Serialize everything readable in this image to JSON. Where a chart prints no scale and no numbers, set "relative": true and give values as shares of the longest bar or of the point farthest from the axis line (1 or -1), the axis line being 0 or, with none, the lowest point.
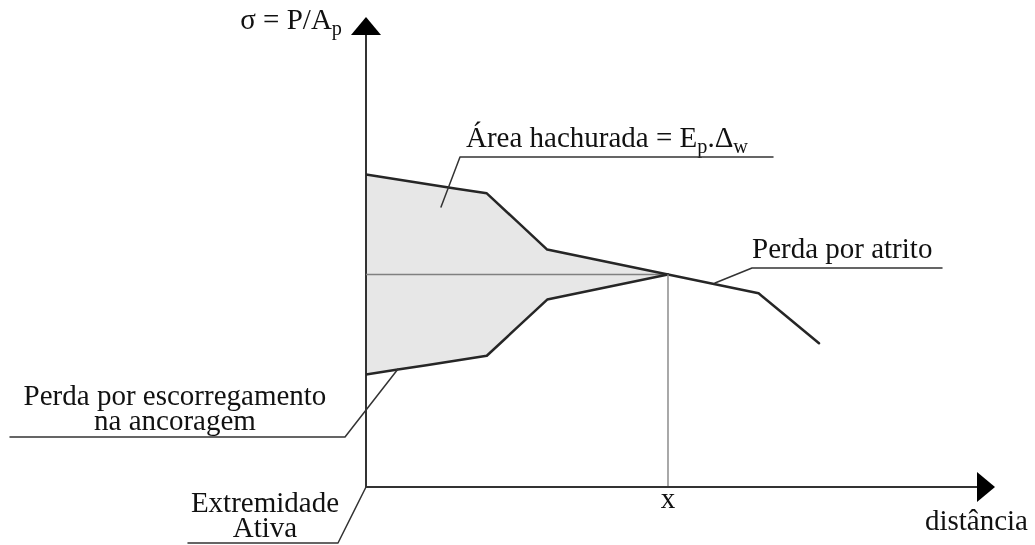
{
  "chart_data": {
    "type": "line",
    "relative": true,
    "xlabel": "distância",
    "ylabel": "σ = P/A$_{p}$",
    "categories": [
      null,
      null,
      null,
      null,
      null,
      null,
      null,
      null,
      null,
      null,
      null,
      null,
      null,
      null,
      null,
      null
    ],
    "series": [
      {
        "color": "#262626",
        "values": [
          1,
          0.985,
          0.97,
          0.955,
          0.94,
          0.85,
          0.76,
          0.74,
          0.72,
          0.7,
          0.68,
          0.66,
          0.64,
          0.62,
          0.54,
          0.46
        ]
      },
      {
        "color": "#262626",
        "values": [
          0.36,
          0.375,
          0.39,
          0.405,
          0.42,
          0.51,
          0.6,
          0.62,
          0.64,
          0.66,
          0.68,
          null,
          null,
          null,
          null,
          null
        ],
        "lower": [
          0.36,
          0.375,
          0.39,
          0.405,
          0.42,
          0.51,
          0.6,
          0.62,
          0.64,
          0.66,
          0.68,
          null,
          null,
          null,
          null,
          null
        ],
        "upper": [
          1,
          0.985,
          0.97,
          0.955,
          0.94,
          0.85,
          0.76,
          0.74,
          0.72,
          0.7,
          0.68,
          null,
          null,
          null,
          null,
          null
        ]
      }
    ],
    "ref_lines": [
      {
        "axis": "y",
        "value": 0.68,
        "color": "#8c8c8c"
      }
    ],
    "annotations": [
      "Área hachurada = E$_{p}$.Δ$_{w}$",
      "Perda por atrito",
      "Perda por escorregamento na ancoragem",
      "Extremidade Ativa",
      "x"
    ]
  }
}
